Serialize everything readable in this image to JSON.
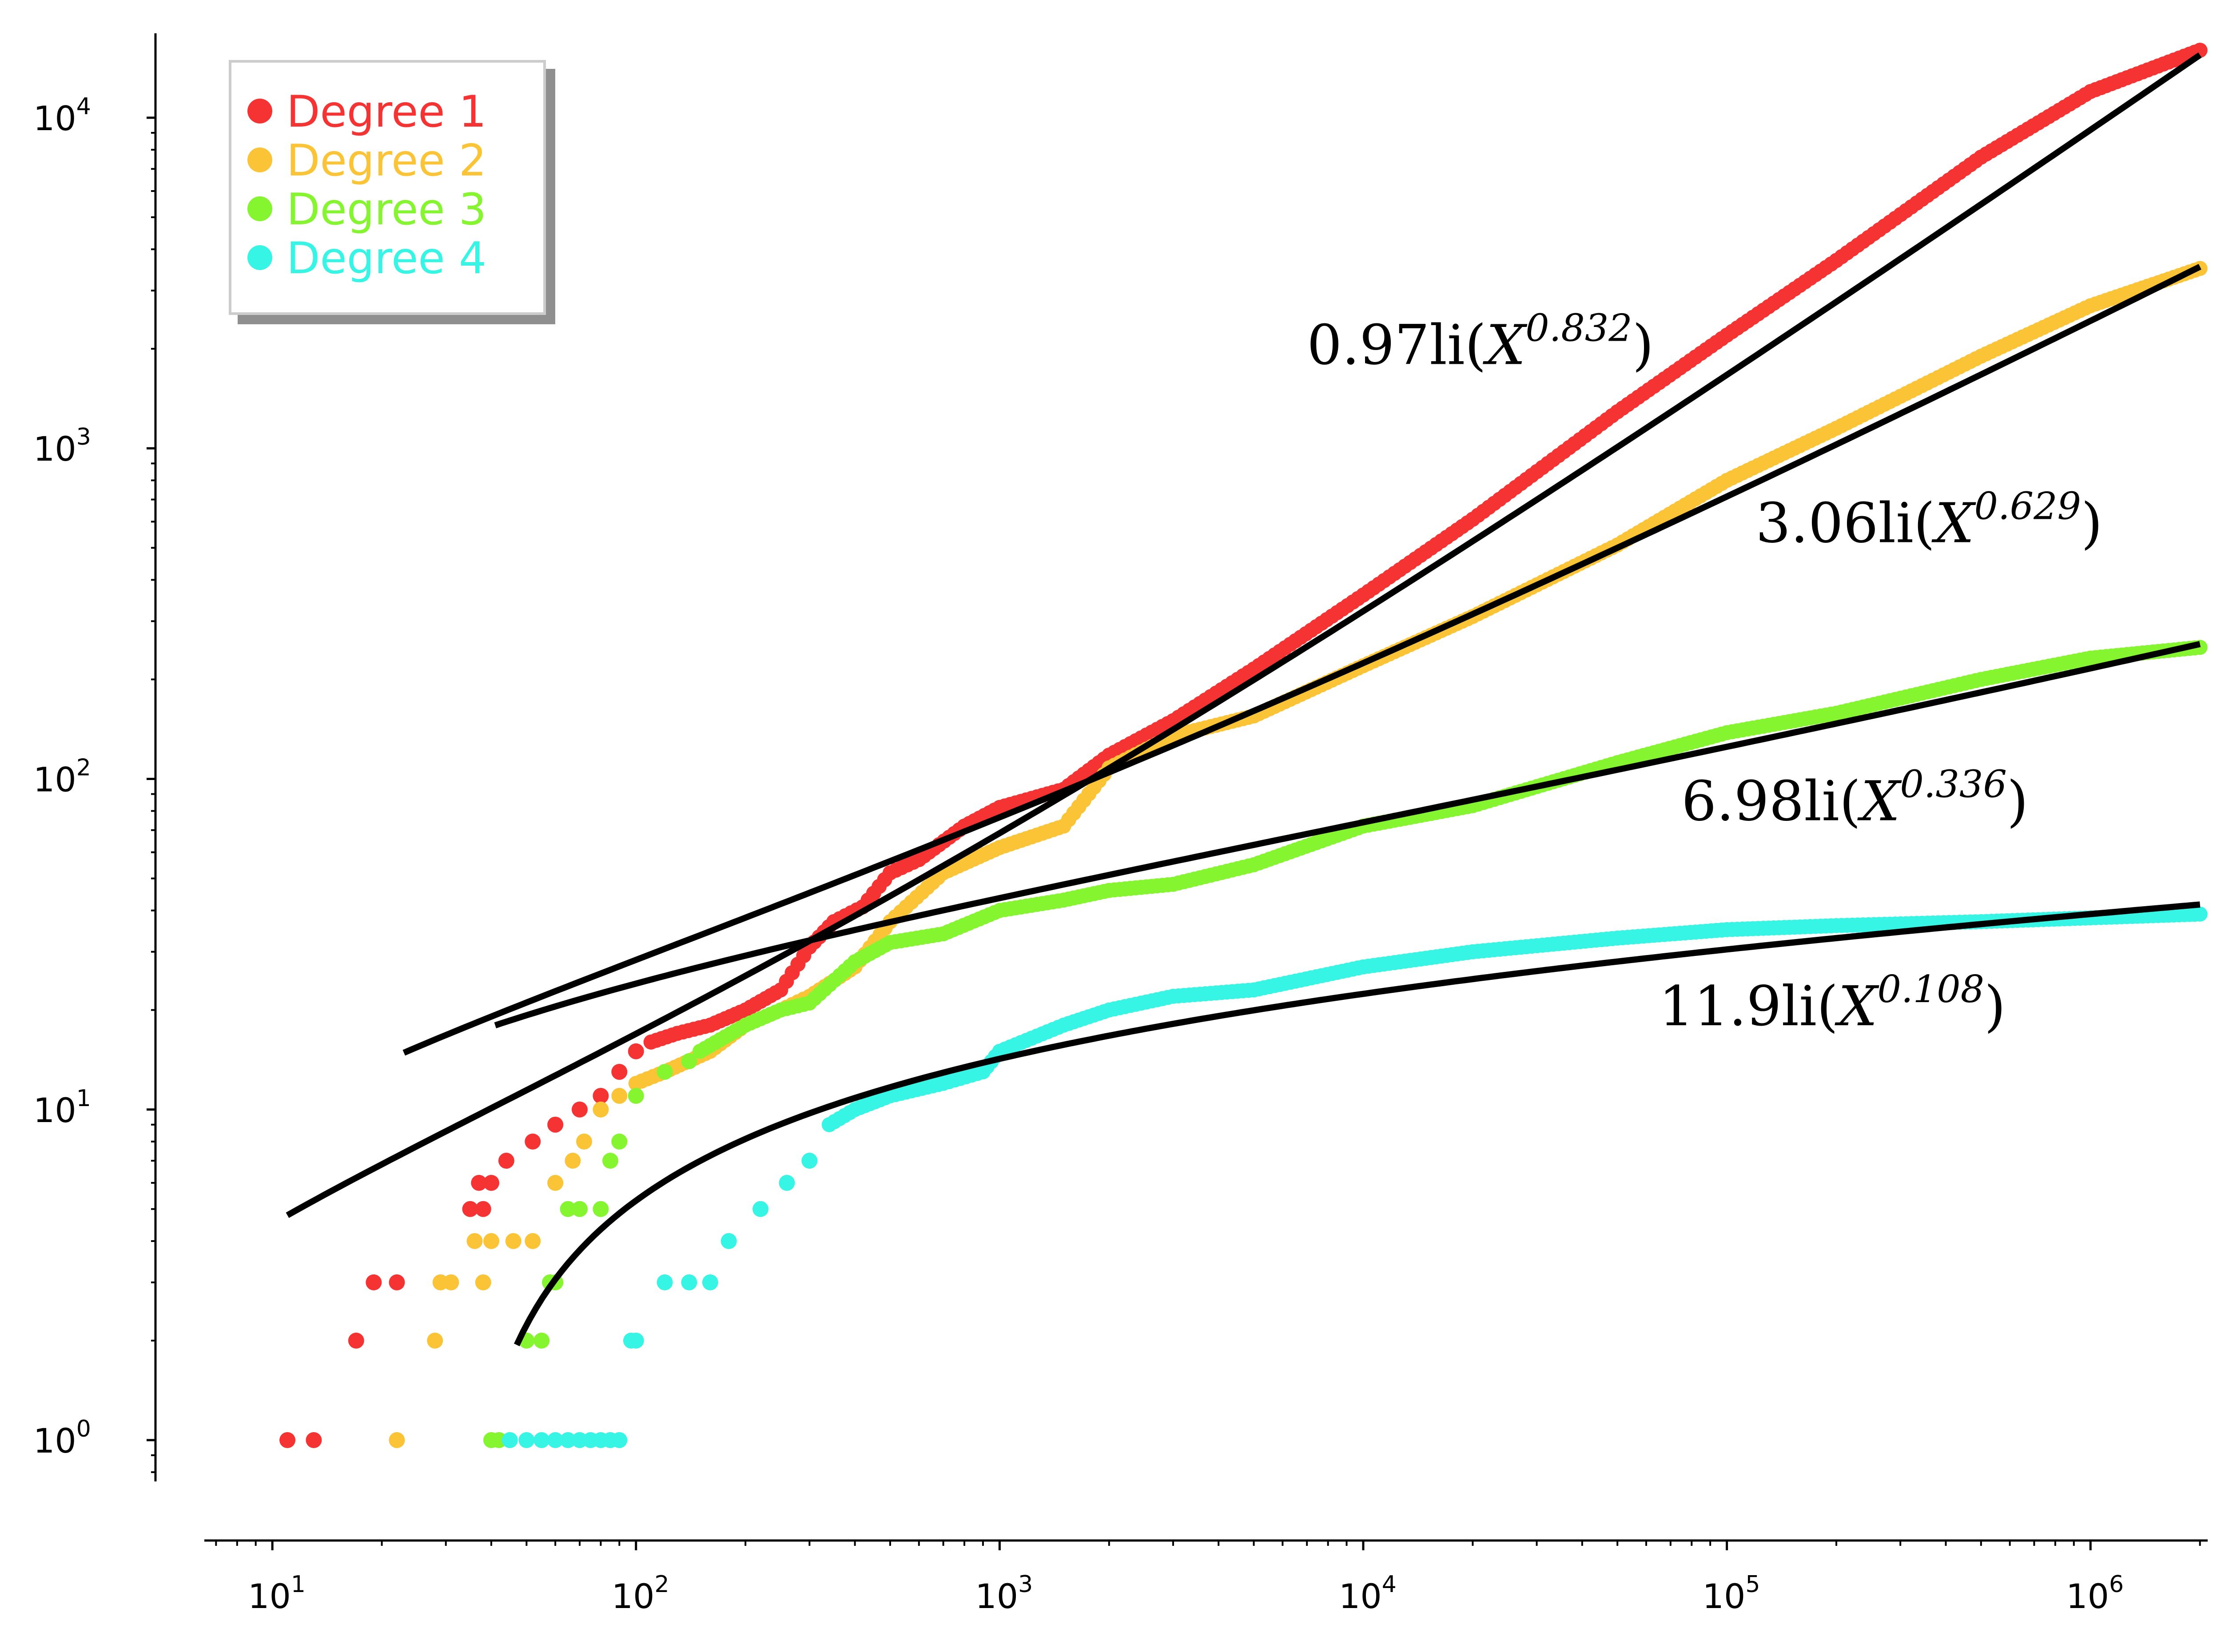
{
  "chart_data": {
    "type": "scatter",
    "x_scale": "log",
    "y_scale": "log",
    "xlim": [
      6.5,
      2100000
    ],
    "ylim": [
      0.75,
      18000
    ],
    "x_ticks": [
      {
        "value": 10,
        "base": "10",
        "exp": "1"
      },
      {
        "value": 100,
        "base": "10",
        "exp": "2"
      },
      {
        "value": 1000,
        "base": "10",
        "exp": "3"
      },
      {
        "value": 10000,
        "base": "10",
        "exp": "4"
      },
      {
        "value": 100000,
        "base": "10",
        "exp": "5"
      },
      {
        "value": 1000000,
        "base": "10",
        "exp": "6"
      }
    ],
    "y_ticks": [
      {
        "value": 1,
        "base": "10",
        "exp": "0"
      },
      {
        "value": 10,
        "base": "10",
        "exp": "1"
      },
      {
        "value": 100,
        "base": "10",
        "exp": "2"
      },
      {
        "value": 1000,
        "base": "10",
        "exp": "3"
      },
      {
        "value": 10000,
        "base": "10",
        "exp": "4"
      }
    ],
    "legend": {
      "location": "top-left",
      "entries": [
        {
          "label": "Degree 1",
          "color": "#f53333"
        },
        {
          "label": "Degree 2",
          "color": "#fbc437"
        },
        {
          "label": "Degree 3",
          "color": "#84f52f"
        },
        {
          "label": "Degree 4",
          "color": "#37f5e4"
        }
      ]
    },
    "series": [
      {
        "name": "Degree 1",
        "color": "#f53333",
        "step_points": [
          [
            11,
            1
          ],
          [
            13,
            1
          ],
          [
            17,
            2
          ],
          [
            19,
            3
          ],
          [
            22,
            3
          ],
          [
            35,
            5
          ],
          [
            38,
            5
          ],
          [
            37,
            6
          ],
          [
            40,
            6
          ],
          [
            44,
            7
          ],
          [
            52,
            8
          ],
          [
            60,
            9
          ],
          [
            70,
            10
          ],
          [
            80,
            11
          ],
          [
            90,
            13
          ],
          [
            100,
            15
          ]
        ],
        "points": [
          [
            110,
            16
          ],
          [
            130,
            17
          ],
          [
            160,
            18
          ],
          [
            200,
            20
          ],
          [
            250,
            23
          ],
          [
            300,
            31
          ],
          [
            350,
            37
          ],
          [
            420,
            41
          ],
          [
            500,
            52
          ],
          [
            600,
            57
          ],
          [
            800,
            72
          ],
          [
            1000,
            82
          ],
          [
            1500,
            93
          ],
          [
            2000,
            118
          ],
          [
            3000,
            150
          ],
          [
            5000,
            215
          ],
          [
            10000,
            360
          ],
          [
            20000,
            610
          ],
          [
            50000,
            1290
          ],
          [
            100000,
            2200
          ],
          [
            200000,
            3700
          ],
          [
            500000,
            7600
          ],
          [
            1000000,
            12000
          ],
          [
            2000000,
            16000
          ]
        ]
      },
      {
        "name": "Degree 2",
        "color": "#fbc437",
        "step_points": [
          [
            22,
            1
          ],
          [
            28,
            2
          ],
          [
            29,
            3
          ],
          [
            31,
            3
          ],
          [
            38,
            3
          ],
          [
            36,
            4
          ],
          [
            40,
            4
          ],
          [
            46,
            4
          ],
          [
            52,
            4
          ],
          [
            60,
            6
          ],
          [
            67,
            7
          ],
          [
            72,
            8
          ],
          [
            80,
            10
          ],
          [
            90,
            11
          ]
        ],
        "points": [
          [
            100,
            12
          ],
          [
            120,
            13
          ],
          [
            160,
            15
          ],
          [
            200,
            18
          ],
          [
            250,
            20
          ],
          [
            300,
            22
          ],
          [
            400,
            27
          ],
          [
            500,
            37
          ],
          [
            700,
            52
          ],
          [
            1000,
            62
          ],
          [
            1500,
            72
          ],
          [
            2000,
            108
          ],
          [
            3000,
            135
          ],
          [
            5000,
            155
          ],
          [
            10000,
            220
          ],
          [
            20000,
            310
          ],
          [
            50000,
            510
          ],
          [
            100000,
            800
          ],
          [
            200000,
            1150
          ],
          [
            500000,
            1900
          ],
          [
            1000000,
            2700
          ],
          [
            2000000,
            3500
          ]
        ]
      },
      {
        "name": "Degree 3",
        "color": "#84f52f",
        "step_points": [
          [
            40,
            1
          ],
          [
            42,
            1
          ],
          [
            50,
            2
          ],
          [
            55,
            2
          ],
          [
            58,
            3
          ],
          [
            60,
            3
          ],
          [
            65,
            5
          ],
          [
            70,
            5
          ],
          [
            80,
            5
          ],
          [
            85,
            7
          ],
          [
            90,
            8
          ],
          [
            100,
            11
          ],
          [
            120,
            13
          ],
          [
            140,
            14
          ]
        ],
        "points": [
          [
            150,
            15
          ],
          [
            200,
            18
          ],
          [
            250,
            20
          ],
          [
            300,
            21
          ],
          [
            400,
            28
          ],
          [
            500,
            32
          ],
          [
            700,
            34
          ],
          [
            1000,
            40
          ],
          [
            1500,
            43
          ],
          [
            2000,
            46
          ],
          [
            3000,
            48
          ],
          [
            5000,
            55
          ],
          [
            10000,
            72
          ],
          [
            20000,
            83
          ],
          [
            50000,
            112
          ],
          [
            100000,
            138
          ],
          [
            200000,
            158
          ],
          [
            500000,
            200
          ],
          [
            1000000,
            232
          ],
          [
            2000000,
            250
          ]
        ]
      },
      {
        "name": "Degree 4",
        "color": "#37f5e4",
        "step_points": [
          [
            45,
            1
          ],
          [
            50,
            1
          ],
          [
            55,
            1
          ],
          [
            60,
            1
          ],
          [
            65,
            1
          ],
          [
            70,
            1
          ],
          [
            75,
            1
          ],
          [
            80,
            1
          ],
          [
            85,
            1
          ],
          [
            90,
            1
          ],
          [
            97,
            2
          ],
          [
            100,
            2
          ],
          [
            120,
            3
          ],
          [
            140,
            3
          ],
          [
            160,
            3
          ],
          [
            180,
            4
          ],
          [
            220,
            5
          ],
          [
            260,
            6
          ],
          [
            300,
            7
          ]
        ],
        "points": [
          [
            340,
            9
          ],
          [
            400,
            10
          ],
          [
            500,
            11
          ],
          [
            700,
            12
          ],
          [
            900,
            13
          ],
          [
            1000,
            15
          ],
          [
            1500,
            18
          ],
          [
            2000,
            20
          ],
          [
            3000,
            22
          ],
          [
            5000,
            23
          ],
          [
            10000,
            27
          ],
          [
            20000,
            30
          ],
          [
            50000,
            33
          ],
          [
            100000,
            35
          ],
          [
            200000,
            36
          ],
          [
            500000,
            37
          ],
          [
            1000000,
            38
          ],
          [
            2000000,
            39
          ]
        ]
      }
    ],
    "fits": [
      {
        "label": "0.97li(X^0.832)",
        "text": "0.97li(",
        "var": "X",
        "exp": "0.832",
        "close": ")",
        "coef": 0.97,
        "power": 0.832,
        "x_start": 11,
        "x_end": 2000000,
        "label_at": [
          7000,
          1800
        ]
      },
      {
        "label": "3.06li(X^0.629)",
        "text": "3.06li(",
        "var": "X",
        "exp": "0.629",
        "close": ")",
        "coef": 3.06,
        "power": 0.629,
        "x_start": 23,
        "x_end": 2000000,
        "label_at": [
          120000,
          520
        ]
      },
      {
        "label": "6.98li(X^0.336)",
        "text": "6.98li(",
        "var": "X",
        "exp": "0.336",
        "close": ")",
        "coef": 6.98,
        "power": 0.336,
        "x_start": 41,
        "x_end": 2000000,
        "label_at": [
          75000,
          75
        ]
      },
      {
        "label": "11.9li(X^0.108)",
        "text": "11.9li(",
        "var": "X",
        "exp": "0.108",
        "close": ")",
        "coef": 11.9,
        "power": 0.108,
        "x_start": 47,
        "x_end": 2000000,
        "label_at": [
          65000,
          18
        ]
      }
    ]
  }
}
